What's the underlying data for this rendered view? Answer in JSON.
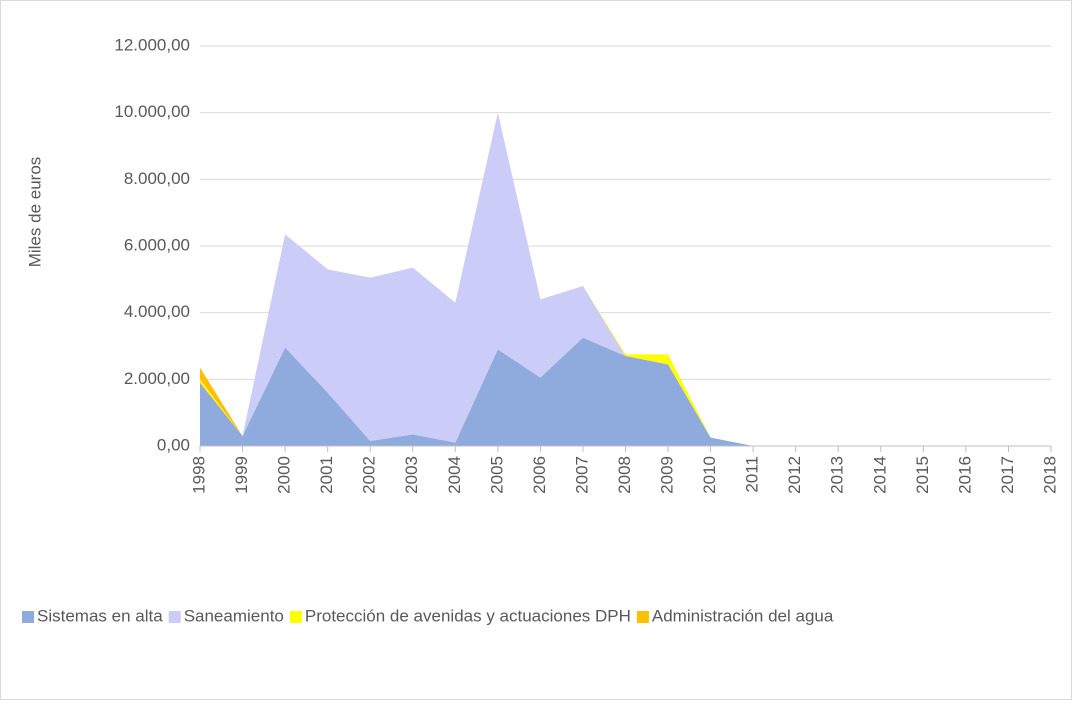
{
  "chart_data": {
    "type": "area",
    "stacked": true,
    "ylabel": "Miles de euros",
    "categories": [
      "1998",
      "1999",
      "2000",
      "2001",
      "2002",
      "2003",
      "2004",
      "2005",
      "2006",
      "2007",
      "2008",
      "2009",
      "2010",
      "2011",
      "2012",
      "2013",
      "2014",
      "2015",
      "2016",
      "2017",
      "2018"
    ],
    "series": [
      {
        "name": "Sistemas en alta",
        "color": "#8faadc",
        "values": [
          1900,
          300,
          2950,
          1600,
          150,
          350,
          100,
          2900,
          2050,
          3250,
          2700,
          2450,
          250,
          0,
          0,
          0,
          0,
          0,
          0,
          0,
          0
        ]
      },
      {
        "name": "Saneamiento",
        "color": "#ccccf8",
        "values": [
          0,
          0,
          3400,
          3700,
          4900,
          5000,
          4200,
          7100,
          2350,
          1550,
          0,
          0,
          0,
          0,
          0,
          0,
          0,
          0,
          0,
          0,
          0
        ]
      },
      {
        "name": "Protección de avenidas y actuaciones DPH",
        "color": "#ffff00",
        "values": [
          100,
          0,
          0,
          0,
          0,
          0,
          0,
          0,
          0,
          0,
          50,
          300,
          0,
          0,
          0,
          0,
          0,
          0,
          0,
          0,
          0
        ]
      },
      {
        "name": "Administración del agua",
        "color": "#ffc000",
        "values": [
          350,
          0,
          0,
          0,
          0,
          0,
          0,
          0,
          0,
          0,
          0,
          0,
          0,
          0,
          0,
          0,
          0,
          0,
          0,
          0,
          0
        ]
      }
    ],
    "ylim": [
      0,
      12000
    ],
    "yticks": [
      {
        "value": 0,
        "label": "0,00"
      },
      {
        "value": 2000,
        "label": "2.000,00"
      },
      {
        "value": 4000,
        "label": "4.000,00"
      },
      {
        "value": 6000,
        "label": "6.000,00"
      },
      {
        "value": 8000,
        "label": "8.000,00"
      },
      {
        "value": 10000,
        "label": "10.000,00"
      },
      {
        "value": 12000,
        "label": "12.000,00"
      }
    ],
    "grid": true,
    "legend": "bottom"
  }
}
